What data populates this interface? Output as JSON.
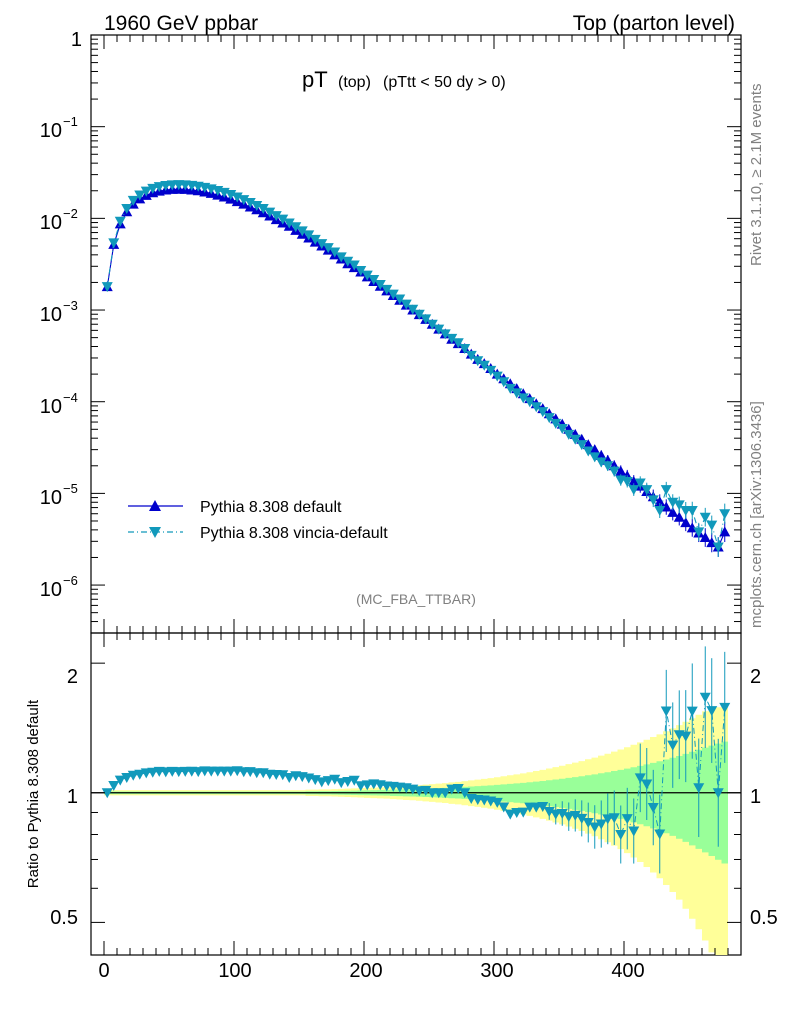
{
  "header": {
    "left": "1960 GeV ppbar",
    "right": "Top (parton level)"
  },
  "side_labels": {
    "rivet": "Rivet 3.1.10, ≥ 2.1M events",
    "mcplots": "mcplots.cern.ch [arXiv:1306.3436]"
  },
  "chart_data": [
    {
      "type": "line",
      "title_main": "pT",
      "title_sub1": "(top)",
      "title_sub2": "(pTtt < 50 dy > 0)",
      "watermark": "(MC_FBA_TTBAR)",
      "yscale": "log",
      "xlim": [
        -10,
        490
      ],
      "ylim": [
        3e-07,
        1
      ],
      "y_tick_labels": [
        "1",
        "10",
        "10",
        "10",
        "10",
        "10",
        "10"
      ],
      "y_tick_exponents": [
        "",
        "−1",
        "−2",
        "−3",
        "−4",
        "−5",
        "−6"
      ],
      "legend_position": "bottom-left",
      "x": [
        2.5,
        7.5,
        12.5,
        17.5,
        22.5,
        27.5,
        32.5,
        37.5,
        42.5,
        47.5,
        52.5,
        57.5,
        62.5,
        67.5,
        72.5,
        77.5,
        82.5,
        87.5,
        92.5,
        97.5,
        102.5,
        107.5,
        112.5,
        117.5,
        122.5,
        127.5,
        132.5,
        137.5,
        142.5,
        147.5,
        152.5,
        157.5,
        162.5,
        167.5,
        172.5,
        177.5,
        182.5,
        187.5,
        192.5,
        197.5,
        202.5,
        207.5,
        212.5,
        217.5,
        222.5,
        227.5,
        232.5,
        237.5,
        242.5,
        247.5,
        252.5,
        257.5,
        262.5,
        267.5,
        272.5,
        277.5,
        282.5,
        287.5,
        292.5,
        297.5,
        302.5,
        307.5,
        312.5,
        317.5,
        322.5,
        327.5,
        332.5,
        337.5,
        342.5,
        347.5,
        352.5,
        357.5,
        362.5,
        367.5,
        372.5,
        377.5,
        382.5,
        387.5,
        392.5,
        397.5,
        402.5,
        407.5,
        412.5,
        417.5,
        422.5,
        427.5,
        432.5,
        437.5,
        442.5,
        447.5,
        452.5,
        457.5,
        462.5,
        467.5,
        472.5,
        477.5
      ],
      "series": [
        {
          "name": "Pythia 8.308 default",
          "color": "#0000cc",
          "marker": "triangle-up",
          "line": "solid",
          "values": [
            0.0018,
            0.0052,
            0.0087,
            0.0118,
            0.0143,
            0.0163,
            0.0178,
            0.019,
            0.0198,
            0.0204,
            0.0207,
            0.0208,
            0.0207,
            0.0204,
            0.02,
            0.0194,
            0.0187,
            0.0179,
            0.0171,
            0.0162,
            0.0152,
            0.0143,
            0.0133,
            0.0124,
            0.0115,
            0.0106,
            0.0097,
            0.0089,
            0.0082,
            0.0074,
            0.0067,
            0.0061,
            0.0055,
            0.005,
            0.0045,
            0.004,
            0.0036,
            0.0032,
            0.0029,
            0.0026,
            0.0023,
            0.00205,
            0.00182,
            0.00162,
            0.00144,
            0.00128,
            0.00113,
            0.001,
            0.00089,
            0.00079,
            0.0007,
            0.00062,
            0.00055,
            0.00048,
            0.00043,
            0.00038,
            0.00033,
            0.00029,
            0.00026,
            0.00023,
            0.0002,
            0.000178,
            0.000157,
            0.000139,
            0.000122,
            0.000108,
            9.5e-05,
            8.4e-05,
            7.4e-05,
            6.5e-05,
            5.7e-05,
            5e-05,
            4.4e-05,
            3.9e-05,
            3.4e-05,
            3e-05,
            2.6e-05,
            2.3e-05,
            2e-05,
            1.75e-05,
            1.55e-05,
            1.35e-05,
            1.2e-05,
            1.05e-05,
            9.2e-06,
            8.1e-06,
            7.1e-06,
            6.2e-06,
            5.5e-06,
            4.8e-06,
            4.2e-06,
            3.7e-06,
            3.3e-06,
            2.9e-06,
            2.6e-06,
            3.8e-06
          ]
        },
        {
          "name": "Pythia 8.308 vincia-default",
          "color": "#1199bb",
          "marker": "triangle-down",
          "line": "dash-dot",
          "values": [
            0.0018,
            0.0054,
            0.0093,
            0.0128,
            0.0157,
            0.018,
            0.0198,
            0.0212,
            0.0222,
            0.0228,
            0.0232,
            0.0233,
            0.0232,
            0.0229,
            0.0224,
            0.0218,
            0.021,
            0.0201,
            0.0192,
            0.0182,
            0.0171,
            0.016,
            0.0149,
            0.0138,
            0.0128,
            0.0117,
            0.0107,
            0.0098,
            0.0089,
            0.0081,
            0.0073,
            0.0066,
            0.0059,
            0.0053,
            0.0048,
            0.0043,
            0.0038,
            0.0034,
            0.0031,
            0.0027,
            0.0024,
            0.00215,
            0.0019,
            0.00168,
            0.00149,
            0.00132,
            0.00116,
            0.00102,
            0.0009,
            0.0008,
            0.0007,
            0.00062,
            0.00055,
            0.00049,
            0.00044,
            0.00038,
            0.00032,
            0.00028,
            0.00025,
            0.00022,
            0.00019,
            0.000165,
            0.00014,
            0.000125,
            0.00011,
            0.0001,
            8.8e-05,
            7.8e-05,
            6.7e-05,
            5.8e-05,
            5.1e-05,
            4.4e-05,
            3.9e-05,
            3.4e-05,
            2.9e-05,
            2.5e-05,
            2.2e-05,
            2e-05,
            1.75e-05,
            1.4e-05,
            1.35e-05,
            1.1e-05,
            1.3e-05,
            1.1e-05,
            8.5e-06,
            6.5e-06,
            1.1e-05,
            8e-06,
            7.5e-06,
            6.5e-06,
            6.5e-06,
            3.8e-06,
            5.5e-06,
            4.5e-06,
            2.6e-06,
            6e-06
          ]
        }
      ]
    },
    {
      "type": "line",
      "ylabel": "Ratio to Pythia 8.308 default",
      "ylim": [
        0.42,
        2.35
      ],
      "yscale": "log",
      "y_ticks": [
        0.5,
        1,
        2
      ],
      "y_tick_labels": [
        "0.5",
        "1",
        "2"
      ],
      "x_ticks": [
        0,
        100,
        200,
        300,
        400
      ],
      "x_tick_labels": [
        "0",
        "100",
        "200",
        "300",
        "400"
      ],
      "xlim": [
        -10,
        490
      ],
      "band_colors": {
        "inner": "#99ff99",
        "outer": "#ffff99"
      },
      "ratio_values": [
        1.0,
        1.04,
        1.07,
        1.085,
        1.098,
        1.104,
        1.112,
        1.116,
        1.121,
        1.118,
        1.121,
        1.12,
        1.121,
        1.122,
        1.12,
        1.124,
        1.123,
        1.123,
        1.123,
        1.123,
        1.125,
        1.119,
        1.12,
        1.113,
        1.113,
        1.104,
        1.103,
        1.101,
        1.085,
        1.095,
        1.09,
        1.082,
        1.073,
        1.06,
        1.067,
        1.075,
        1.056,
        1.062,
        1.069,
        1.038,
        1.043,
        1.049,
        1.044,
        1.037,
        1.035,
        1.031,
        1.027,
        1.02,
        1.011,
        1.013,
        1.0,
        1.0,
        1.0,
        1.02,
        1.023,
        1.0,
        0.97,
        0.965,
        0.962,
        0.957,
        0.95,
        0.927,
        0.892,
        0.9,
        0.902,
        0.926,
        0.926,
        0.929,
        0.905,
        0.892,
        0.895,
        0.88,
        0.886,
        0.872,
        0.853,
        0.833,
        0.846,
        0.87,
        0.875,
        0.8,
        0.871,
        0.815,
        1.083,
        1.048,
        0.924,
        0.802,
        1.549,
        1.29,
        1.364,
        1.354,
        1.548,
        1.027,
        1.667,
        1.552,
        1.0,
        1.579
      ],
      "band_halfwidth": [
        0.01,
        0.01,
        0.01,
        0.01,
        0.01,
        0.01,
        0.01,
        0.01,
        0.01,
        0.01,
        0.01,
        0.01,
        0.01,
        0.01,
        0.01,
        0.01,
        0.01,
        0.01,
        0.01,
        0.01,
        0.01,
        0.01,
        0.01,
        0.01,
        0.01,
        0.01,
        0.01,
        0.01,
        0.01,
        0.01,
        0.01,
        0.012,
        0.012,
        0.013,
        0.013,
        0.014,
        0.015,
        0.016,
        0.017,
        0.018,
        0.019,
        0.02,
        0.021,
        0.022,
        0.024,
        0.025,
        0.027,
        0.028,
        0.03,
        0.032,
        0.034,
        0.036,
        0.038,
        0.041,
        0.043,
        0.046,
        0.049,
        0.052,
        0.055,
        0.058,
        0.062,
        0.066,
        0.07,
        0.074,
        0.078,
        0.083,
        0.088,
        0.093,
        0.099,
        0.105,
        0.111,
        0.118,
        0.125,
        0.132,
        0.14,
        0.148,
        0.157,
        0.166,
        0.176,
        0.186,
        0.197,
        0.209,
        0.221,
        0.234,
        0.248,
        0.262,
        0.278,
        0.294,
        0.311,
        0.33,
        0.35,
        0.37,
        0.39,
        0.41,
        0.43,
        0.45
      ]
    }
  ]
}
